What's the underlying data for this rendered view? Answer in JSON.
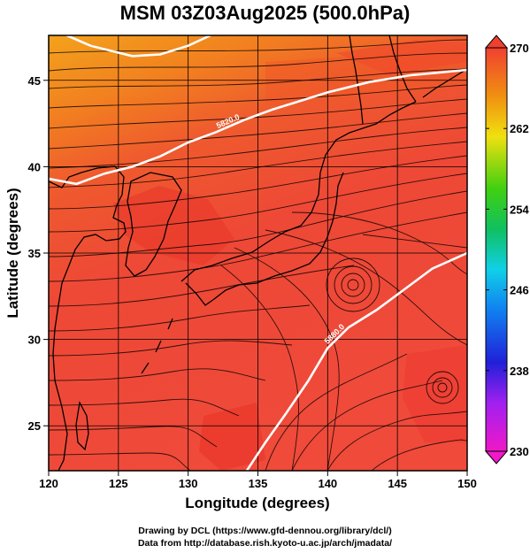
{
  "title": "MSM 03Z03Aug2025 (500.0hPa)",
  "chart_data": {
    "type": "heatmap",
    "title": "MSM 03Z03Aug2025 (500.0hPa)",
    "xlabel": "Longitude (degrees)",
    "ylabel": "Latitude (degrees)",
    "xlim": [
      120,
      150
    ],
    "ylim": [
      22.4,
      47.6
    ],
    "x_ticks": [
      "120",
      "125",
      "130",
      "135",
      "140",
      "145",
      "150"
    ],
    "y_ticks": [
      "25",
      "30",
      "35",
      "40",
      "45"
    ],
    "grid": true,
    "colorbar": {
      "range": [
        230,
        270
      ],
      "ticks": [
        "230",
        "238",
        "246",
        "254",
        "262",
        "270"
      ],
      "placement": "right"
    },
    "contours": [
      {
        "label": "5820.0",
        "points": [
          [
            120,
            39.3
          ],
          [
            122,
            39.0
          ],
          [
            124,
            39.6
          ],
          [
            126,
            40.0
          ],
          [
            128,
            40.6
          ],
          [
            130,
            41.4
          ],
          [
            132,
            42.0
          ],
          [
            134,
            42.7
          ],
          [
            136,
            43.3
          ],
          [
            138,
            43.8
          ],
          [
            140,
            44.3
          ],
          [
            143,
            44.9
          ],
          [
            146,
            45.3
          ],
          [
            150,
            45.6
          ]
        ]
      },
      {
        "label": "5880.0",
        "points": [
          [
            134.2,
            22.4
          ],
          [
            135.5,
            24.0
          ],
          [
            137,
            25.7
          ],
          [
            138.6,
            27.6
          ],
          [
            140,
            29.5
          ],
          [
            141.5,
            30.7
          ],
          [
            143.5,
            31.7
          ],
          [
            145.5,
            32.9
          ],
          [
            147.5,
            34.1
          ],
          [
            150,
            35.0
          ]
        ]
      },
      {
        "label": "",
        "points": [
          [
            121.3,
            47.6
          ],
          [
            123,
            47.0
          ],
          [
            126,
            46.4
          ],
          [
            128,
            46.5
          ],
          [
            130,
            47.0
          ],
          [
            131.6,
            47.6
          ]
        ]
      }
    ],
    "vortices": [
      {
        "lon": 141.8,
        "lat": 33.7
      },
      {
        "lon": 148.0,
        "lat": 27.6
      }
    ]
  },
  "colors": {
    "field_warm": "#f04a40",
    "field_hot": "#ee3030",
    "field_north": "#f29a1e",
    "field_mid": "#f0722a",
    "contour": "#ffffff",
    "streamline": "#000000"
  },
  "credits": {
    "line1": "Drawing by DCL (https://www.gfd-dennou.org/library/dcl/)",
    "line2": "Data from http://database.rish.kyoto-u.ac.jp/arch/jmadata/"
  }
}
